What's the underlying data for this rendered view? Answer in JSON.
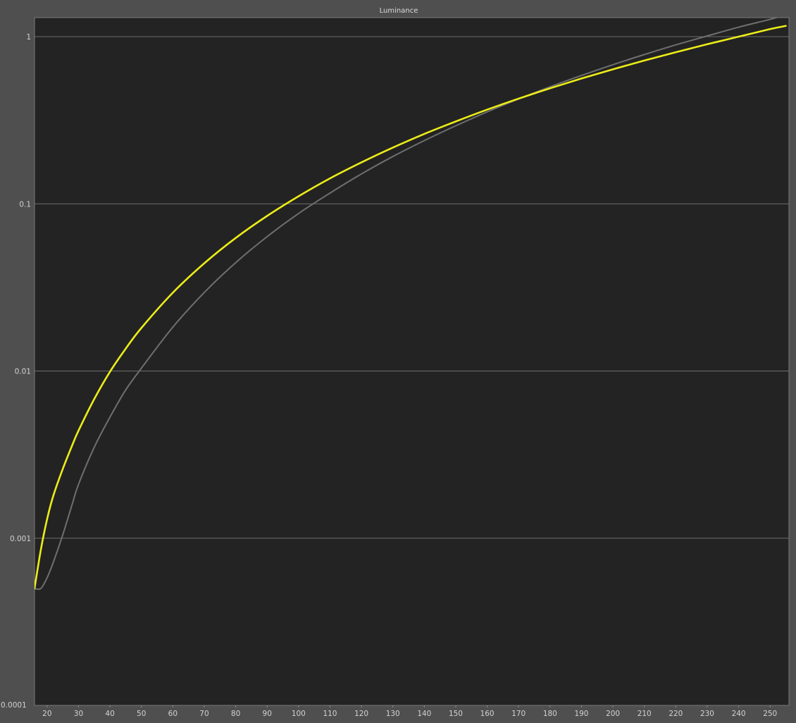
{
  "chart_data": {
    "type": "line",
    "title": "Luminance",
    "xlabel": "",
    "ylabel": "",
    "x_scale": "linear",
    "y_scale": "log",
    "xlim": [
      16,
      256
    ],
    "ylim": [
      0.0001,
      1.3
    ],
    "x_ticks": [
      20,
      30,
      40,
      50,
      60,
      70,
      80,
      90,
      100,
      110,
      120,
      130,
      140,
      150,
      160,
      170,
      180,
      190,
      200,
      210,
      220,
      230,
      240,
      250
    ],
    "y_ticks": [
      {
        "value": 0.0001,
        "label": "0.0001"
      },
      {
        "value": 0.001,
        "label": "0.001"
      },
      {
        "value": 0.01,
        "label": "0.01"
      },
      {
        "value": 0.1,
        "label": "0.1"
      },
      {
        "value": 1,
        "label": "1"
      }
    ],
    "grid": {
      "horizontal": true,
      "vertical": false
    },
    "legend": "none",
    "colors": {
      "background": "#4f4f4f",
      "plot_area": "#232323",
      "grid": "#6e6e6e",
      "axis_text": "#d2d2d2"
    },
    "series": [
      {
        "color": "#6f6f6f",
        "x": [
          16,
          18,
          20,
          22,
          25,
          28,
          30,
          35,
          40,
          45,
          50,
          60,
          70,
          80,
          90,
          100,
          110,
          120,
          130,
          140,
          150,
          160,
          170,
          180,
          190,
          200,
          210,
          220,
          230,
          240,
          250,
          255
        ],
        "y": [
          0.0005,
          0.0005,
          0.00058,
          0.00072,
          0.00105,
          0.0016,
          0.0021,
          0.0035,
          0.0053,
          0.0077,
          0.0104,
          0.0183,
          0.0295,
          0.0445,
          0.0637,
          0.0876,
          0.116,
          0.151,
          0.192,
          0.239,
          0.293,
          0.355,
          0.424,
          0.501,
          0.586,
          0.68,
          0.782,
          0.893,
          1.01,
          1.14,
          1.27,
          1.35
        ]
      },
      {
        "color": "#ecec19",
        "x": [
          16,
          18,
          20,
          22,
          25,
          28,
          30,
          35,
          40,
          45,
          50,
          60,
          70,
          80,
          90,
          100,
          110,
          120,
          130,
          140,
          150,
          160,
          170,
          180,
          190,
          200,
          210,
          220,
          230,
          240,
          250,
          255
        ],
        "y": [
          0.0005,
          0.00085,
          0.0013,
          0.0018,
          0.0026,
          0.0036,
          0.0044,
          0.0068,
          0.0099,
          0.0136,
          0.0181,
          0.0294,
          0.0441,
          0.0625,
          0.0847,
          0.111,
          0.142,
          0.177,
          0.217,
          0.262,
          0.311,
          0.366,
          0.426,
          0.491,
          0.562,
          0.638,
          0.72,
          0.807,
          0.901,
          1.0,
          1.11,
          1.16
        ]
      }
    ]
  }
}
